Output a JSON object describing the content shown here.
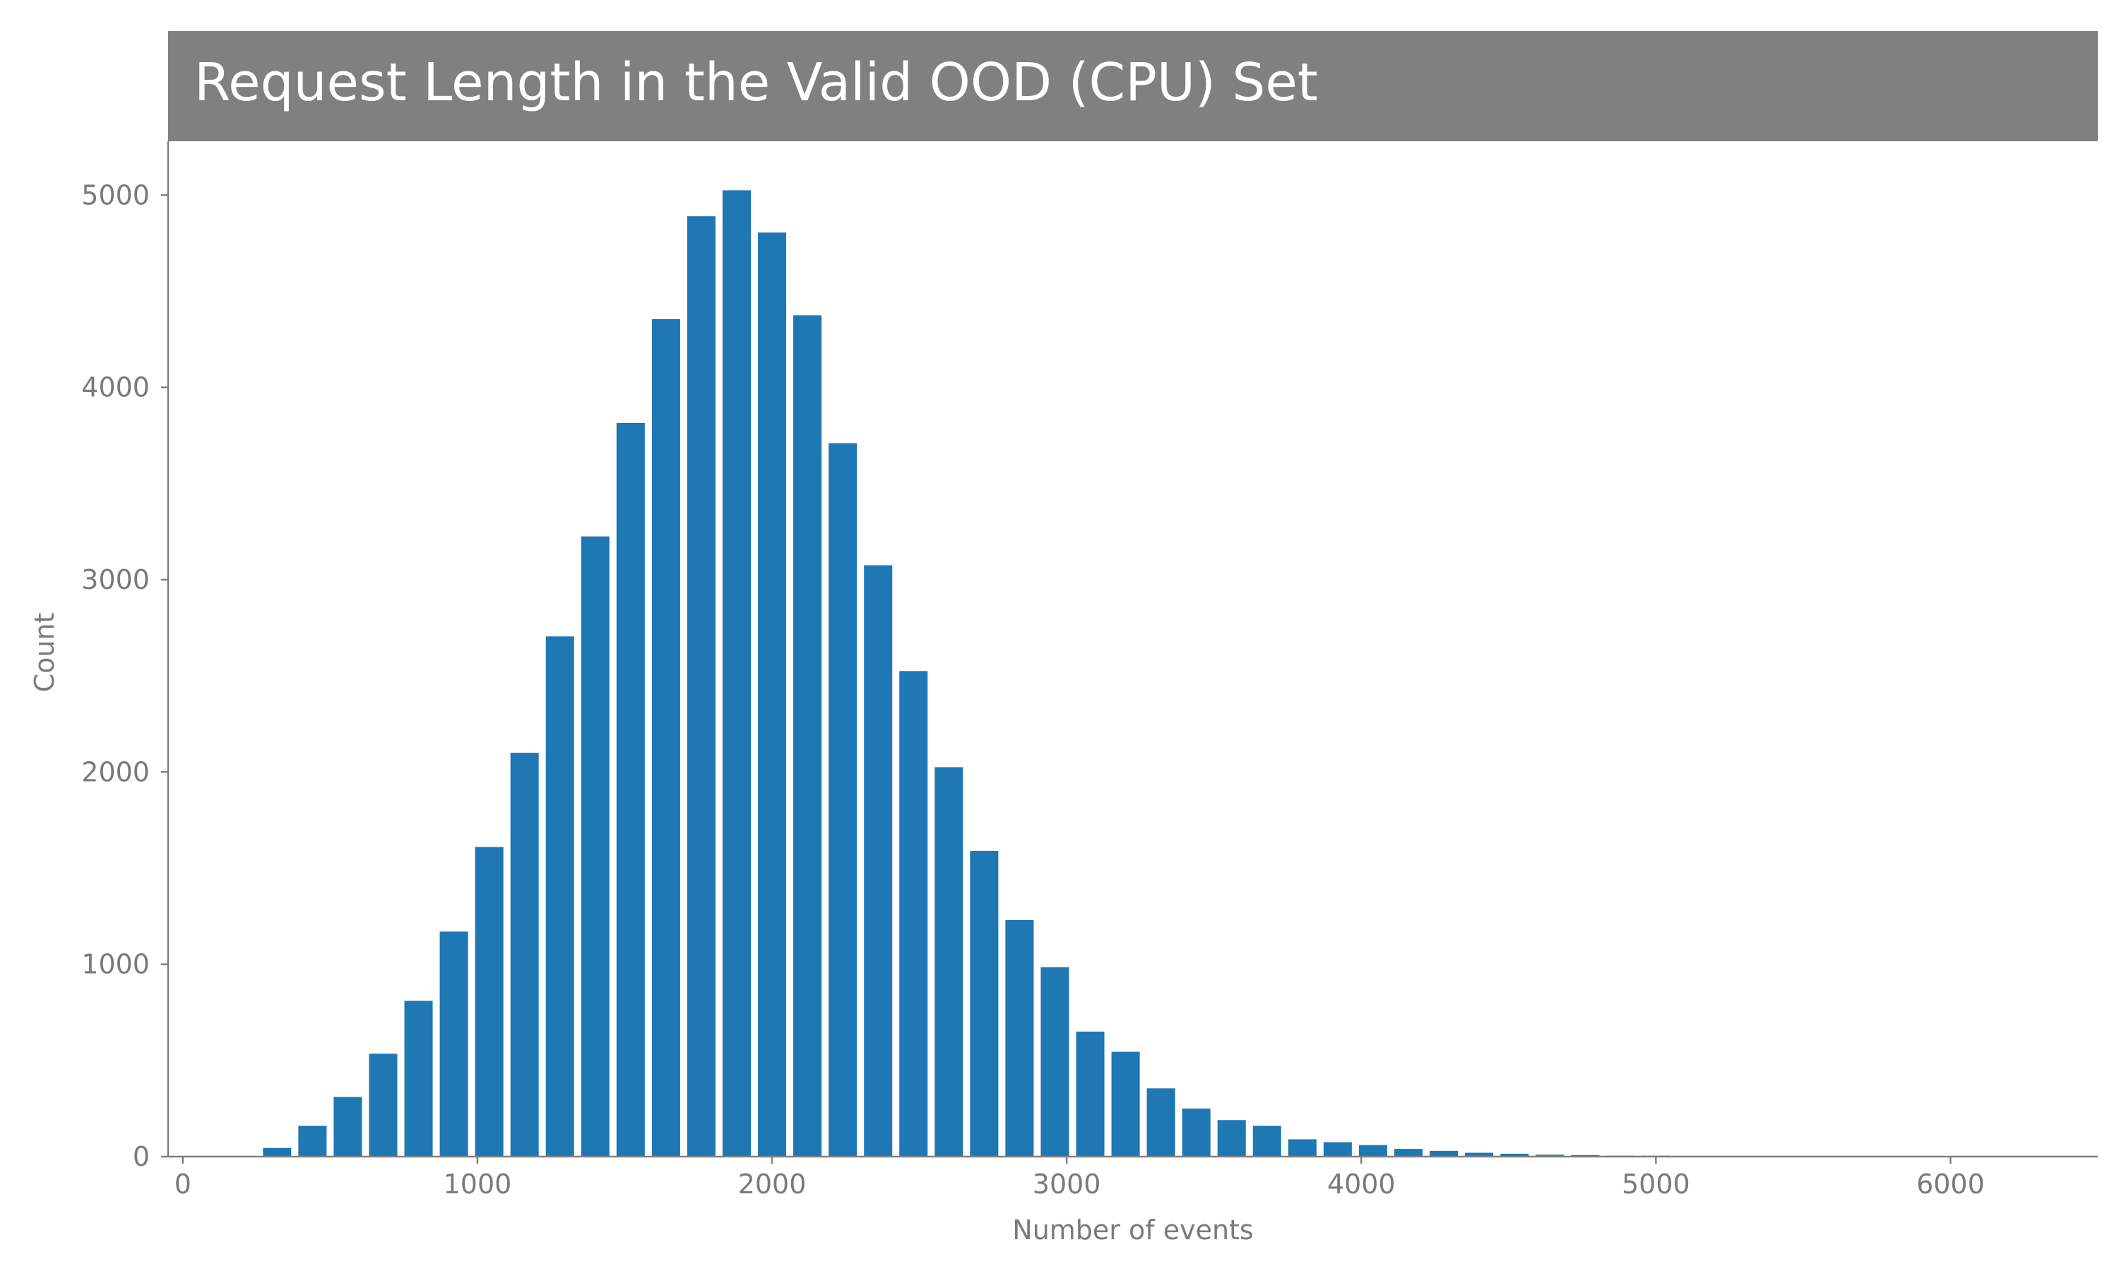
{
  "chart_data": {
    "type": "bar",
    "title": "Request Length in the Valid OOD (CPU) Set",
    "xlabel": "Number of events",
    "ylabel": "Count",
    "xlim": [
      -50,
      6500
    ],
    "ylim": [
      0,
      5280
    ],
    "xticks": [
      0,
      1000,
      2000,
      3000,
      4000,
      5000,
      6000
    ],
    "yticks": [
      0,
      1000,
      2000,
      3000,
      4000,
      5000
    ],
    "bin_width": 120,
    "grid": false,
    "colors": {
      "bar": "#1f77b4",
      "title_bar": "#808080",
      "axis": "#808080",
      "text": "#7a7a7a"
    },
    "x": [
      320,
      440,
      560,
      680,
      800,
      920,
      1040,
      1160,
      1280,
      1400,
      1520,
      1640,
      1760,
      1880,
      2000,
      2120,
      2240,
      2360,
      2480,
      2600,
      2720,
      2840,
      2960,
      3080,
      3200,
      3320,
      3440,
      3560,
      3680,
      3800,
      3920,
      4040,
      4160,
      4280,
      4400,
      4520,
      4640,
      4760,
      4880,
      5000
    ],
    "values": [
      45,
      160,
      310,
      535,
      810,
      1170,
      1610,
      2100,
      2705,
      3225,
      3815,
      4355,
      4890,
      5025,
      4805,
      4375,
      3710,
      3075,
      2525,
      2025,
      1590,
      1230,
      985,
      650,
      545,
      355,
      250,
      190,
      160,
      90,
      75,
      60,
      40,
      30,
      20,
      15,
      10,
      8,
      5,
      5
    ]
  }
}
